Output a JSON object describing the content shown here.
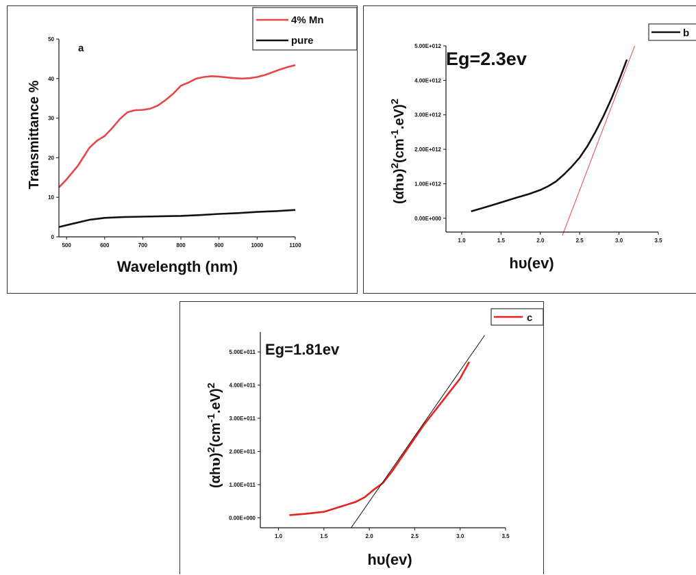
{
  "chart_data": [
    {
      "id": "a",
      "type": "line",
      "panel_label": "a",
      "xlabel": "Wavelength (nm)",
      "ylabel": "Transmittance %",
      "xlim": [
        480,
        1100
      ],
      "ylim": [
        0,
        50
      ],
      "xticks": [
        500,
        600,
        700,
        800,
        900,
        1000,
        1100
      ],
      "yticks": [
        0,
        10,
        20,
        30,
        40,
        50
      ],
      "legend_position": "top-right",
      "series": [
        {
          "name": "4% Mn",
          "color": "#e8454a",
          "x": [
            480,
            500,
            530,
            560,
            580,
            600,
            620,
            640,
            660,
            680,
            700,
            720,
            740,
            760,
            780,
            800,
            820,
            840,
            860,
            880,
            900,
            920,
            940,
            960,
            980,
            1000,
            1020,
            1040,
            1060,
            1080,
            1100
          ],
          "y": [
            12.5,
            14.5,
            18,
            22.5,
            24.3,
            25.5,
            27.5,
            29.8,
            31.5,
            32,
            32.1,
            32.4,
            33.2,
            34.6,
            36.2,
            38.2,
            39,
            40,
            40.4,
            40.6,
            40.5,
            40.3,
            40.1,
            40.0,
            40.1,
            40.4,
            40.9,
            41.6,
            42.3,
            42.9,
            43.4
          ]
        },
        {
          "name": "pure",
          "color": "#111111",
          "x": [
            480,
            520,
            560,
            600,
            650,
            700,
            750,
            800,
            850,
            900,
            950,
            1000,
            1050,
            1100
          ],
          "y": [
            2.5,
            3.4,
            4.3,
            4.8,
            5.0,
            5.1,
            5.2,
            5.3,
            5.5,
            5.8,
            6.0,
            6.3,
            6.5,
            6.8
          ]
        }
      ]
    },
    {
      "id": "b",
      "type": "line",
      "xlabel": "hυ(ev)",
      "ylabel": "(αhυ)2(cm-1.eV)2",
      "ylabel_parts": [
        "(αh",
        "υ",
        ")",
        "2",
        "(cm",
        "-1",
        ".eV)",
        "2"
      ],
      "annotation": "Eg=2.3ev",
      "xlim": [
        0.8,
        3.5
      ],
      "ylim": [
        -400000000000.0,
        5000000000000.0
      ],
      "xticks": [
        1.0,
        1.5,
        2.0,
        2.5,
        3.0,
        3.5
      ],
      "xtick_labels": [
        "1.0",
        "1.5",
        "2.0",
        "2.5",
        "3.0",
        "3.5"
      ],
      "yticks": [
        0,
        1000000000000.0,
        2000000000000.0,
        3000000000000.0,
        4000000000000.0,
        5000000000000.0
      ],
      "ytick_labels": [
        "0.00E+000",
        "1.00E+012",
        "2.00E+012",
        "3.00E+012",
        "4.00E+012",
        "5.00E+012"
      ],
      "legend_position": "top-right",
      "series": [
        {
          "name": "b",
          "color": "#111111",
          "x": [
            1.12,
            1.3,
            1.5,
            1.7,
            1.85,
            2.0,
            2.1,
            2.2,
            2.3,
            2.4,
            2.5,
            2.6,
            2.7,
            2.8,
            2.9,
            3.0,
            3.1
          ],
          "y": [
            200000000000.0,
            320000000000.0,
            460000000000.0,
            600000000000.0,
            700000000000.0,
            820000000000.0,
            930000000000.0,
            1070000000000.0,
            1270000000000.0,
            1500000000000.0,
            1760000000000.0,
            2100000000000.0,
            2500000000000.0,
            2950000000000.0,
            3450000000000.0,
            4000000000000.0,
            4600000000000.0
          ]
        }
      ],
      "fit_line": {
        "color": "#e8454a",
        "x": [
          2.28,
          3.2
        ],
        "y": [
          -500000000000.0,
          5000000000000.0
        ]
      }
    },
    {
      "id": "c",
      "type": "line",
      "xlabel": "hυ(ev)",
      "ylabel": "(αhυ)2(cm-1.eV)2",
      "ylabel_parts": [
        "(αh",
        "υ",
        ")",
        "2",
        "(cm",
        "-1",
        ".eV)",
        "2"
      ],
      "annotation": "Eg=1.81ev",
      "xlim": [
        0.8,
        3.5
      ],
      "ylim": [
        -30000000000.0,
        560000000000.0
      ],
      "xticks": [
        1.0,
        1.5,
        2.0,
        2.5,
        3.0,
        3.5
      ],
      "xtick_labels": [
        "1.0",
        "1.5",
        "2.0",
        "2.5",
        "3.0",
        "3.5"
      ],
      "yticks": [
        0,
        100000000000.0,
        200000000000.0,
        300000000000.0,
        400000000000.0,
        500000000000.0
      ],
      "ytick_labels": [
        "0.00E+000",
        "1.00E+011",
        "2.00E+011",
        "3.00E+011",
        "4.00E+011",
        "5.00E+011"
      ],
      "legend_position": "top-right",
      "series": [
        {
          "name": "c",
          "color": "#e8221c",
          "x": [
            1.12,
            1.3,
            1.5,
            1.7,
            1.85,
            1.95,
            2.05,
            2.15,
            2.25,
            2.35,
            2.45,
            2.6,
            2.8,
            3.0,
            3.1
          ],
          "y": [
            8000000000.0,
            12000000000.0,
            18000000000.0,
            35000000000.0,
            48000000000.0,
            62000000000.0,
            85000000000.0,
            105000000000.0,
            140000000000.0,
            180000000000.0,
            220000000000.0,
            280000000000.0,
            350000000000.0,
            420000000000.0,
            470000000000.0
          ]
        }
      ],
      "fit_line": {
        "color": "#111111",
        "x": [
          1.8,
          3.27
        ],
        "y": [
          -30000000000.0,
          550000000000.0
        ]
      }
    }
  ]
}
